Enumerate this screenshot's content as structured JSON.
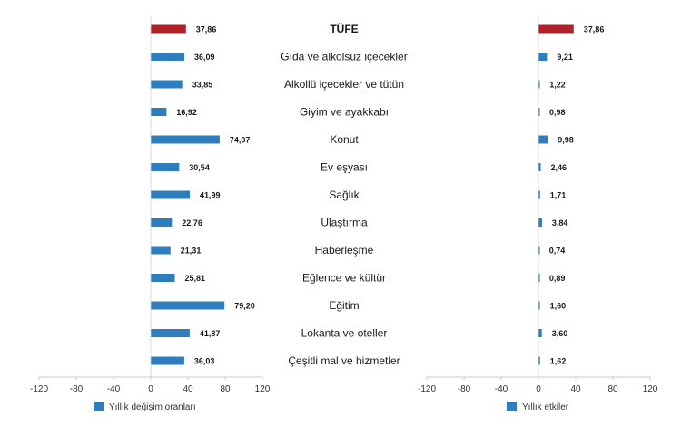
{
  "chart_data": {
    "type": "bar",
    "orientation": "horizontal",
    "categories": [
      "TÜFE",
      "Gıda ve alkolsüz içecekler",
      "Alkollü içecekler ve tütün",
      "Giyim ve ayakkabı",
      "Konut",
      "Ev eşyası",
      "Sağlık",
      "Ulaştırma",
      "Haberleşme",
      "Eğlence ve kültür",
      "Eğitim",
      "Lokanta ve oteller",
      "Çeşitli mal ve hizmetler"
    ],
    "value_labels": {
      "left": [
        "37,86",
        "36,09",
        "33,85",
        "16,92",
        "74,07",
        "30,54",
        "41,99",
        "22,76",
        "21,31",
        "25,81",
        "79,20",
        "41,87",
        "36,03"
      ],
      "right": [
        "37,86",
        "9,21",
        "1,22",
        "0,98",
        "9,98",
        "2,46",
        "1,71",
        "3,84",
        "0,74",
        "0,89",
        "1,60",
        "3,60",
        "1,62"
      ]
    },
    "series": [
      {
        "name": "Yıllık değişim oranları",
        "panel": "left",
        "values": [
          37.86,
          36.09,
          33.85,
          16.92,
          74.07,
          30.54,
          41.99,
          22.76,
          21.31,
          25.81,
          79.2,
          41.87,
          36.03
        ]
      },
      {
        "name": "Yıllık etkiler",
        "panel": "right",
        "values": [
          37.86,
          9.21,
          1.22,
          0.98,
          9.98,
          2.46,
          1.71,
          3.84,
          0.74,
          0.89,
          1.6,
          3.6,
          1.62
        ]
      }
    ],
    "xlim": [
      -120,
      120
    ],
    "xticks": [
      "-120",
      "-80",
      "-40",
      "0",
      "40",
      "80",
      "120"
    ],
    "colors": {
      "series": "#2e7ebf",
      "highlight": "#b22028"
    },
    "legend_placement": "bottom-left of each panel",
    "grid": false
  }
}
